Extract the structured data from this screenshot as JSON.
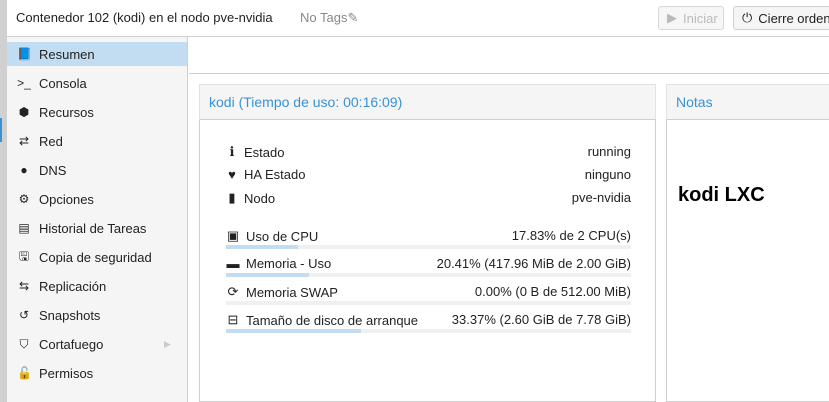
{
  "header": {
    "title": "Contenedor 102 (kodi) en el nodo pve-nvidia",
    "tags": "No Tags",
    "start_label": "Iniciar",
    "shutdown_label": "Cierre ordena"
  },
  "sidebar": {
    "items": [
      {
        "label": "Resumen",
        "icon": "book-icon",
        "active": true
      },
      {
        "label": "Consola",
        "icon": "terminal-icon"
      },
      {
        "label": "Recursos",
        "icon": "cube-icon"
      },
      {
        "label": "Red",
        "icon": "exchange-icon"
      },
      {
        "label": "DNS",
        "icon": "globe-icon"
      },
      {
        "label": "Opciones",
        "icon": "gear-icon"
      },
      {
        "label": "Historial de Tareas",
        "icon": "list-icon"
      },
      {
        "label": "Copia de seguridad",
        "icon": "floppy-icon"
      },
      {
        "label": "Replicación",
        "icon": "retweet-icon"
      },
      {
        "label": "Snapshots",
        "icon": "history-icon"
      },
      {
        "label": "Cortafuego",
        "icon": "shield-icon",
        "has_submenu": true
      },
      {
        "label": "Permisos",
        "icon": "unlock-icon"
      }
    ]
  },
  "status": {
    "title": "kodi (Tiempo de uso: 00:16:09)",
    "info": [
      {
        "label": "Estado",
        "value": "running"
      },
      {
        "label": "HA Estado",
        "value": "ninguno"
      },
      {
        "label": "Nodo",
        "value": "pve-nvidia"
      }
    ],
    "usage": [
      {
        "label": "Uso de CPU",
        "value": "17.83% de 2 CPU(s)",
        "percent": 17.83
      },
      {
        "label": "Memoria - Uso",
        "value": "20.41% (417.96 MiB de 2.00 GiB)",
        "percent": 20.41
      },
      {
        "label": "Memoria SWAP",
        "value": "0.00% (0 B de 512.00 MiB)",
        "percent": 0
      },
      {
        "label": "Tamaño de disco de arranque",
        "value": "33.37% (2.60 GiB de 7.78 GiB)",
        "percent": 33.37
      }
    ]
  },
  "notes": {
    "title": "Notas",
    "text": "kodi LXC"
  },
  "colors": {
    "accent": "#3892d4",
    "active": "#c2ddf2"
  }
}
